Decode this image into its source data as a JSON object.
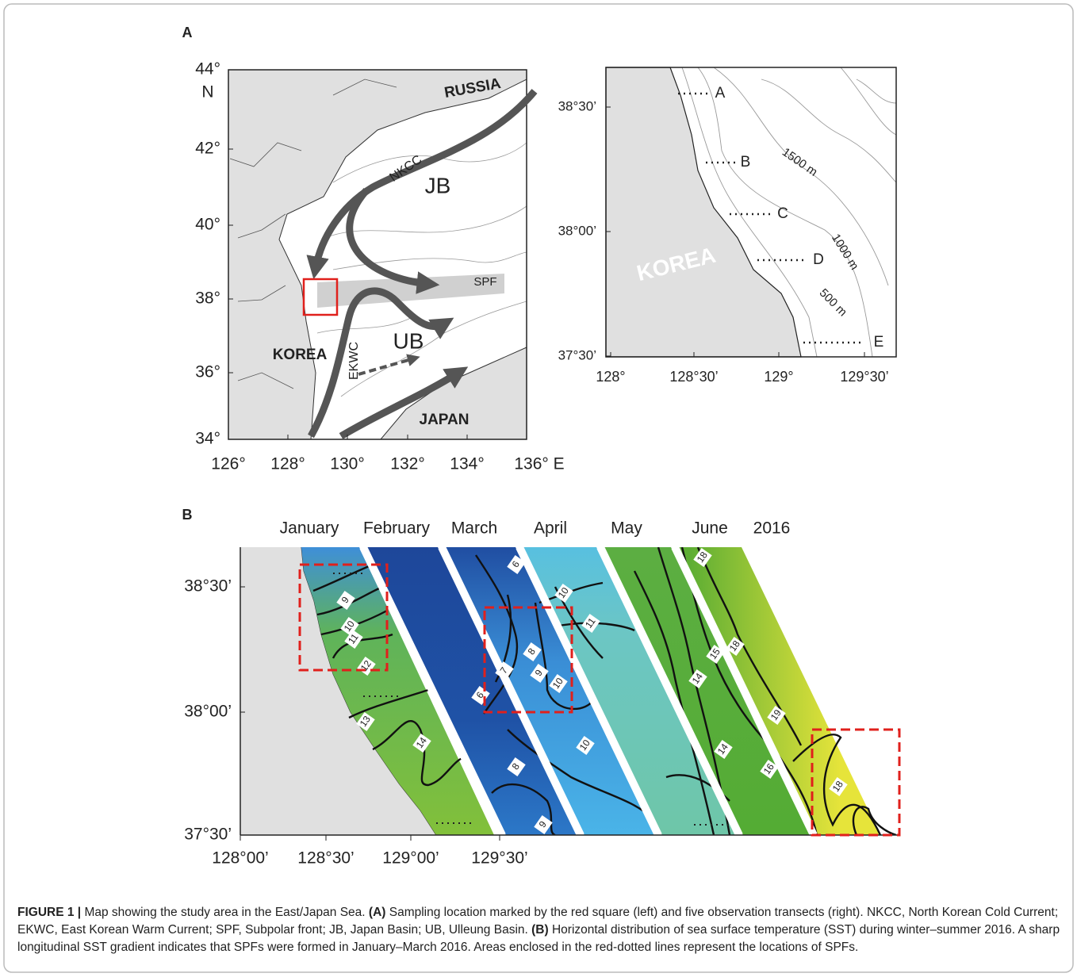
{
  "panel_a": {
    "label": "A",
    "left_map": {
      "lat_ticks": [
        "44°",
        "42°",
        "40°",
        "38°",
        "36°",
        "34°"
      ],
      "north": "N",
      "lon_ticks": [
        "126°",
        "128°",
        "130°",
        "132°",
        "134°",
        "136° E"
      ],
      "regions": [
        "RUSSIA",
        "KOREA",
        "JAPAN"
      ],
      "currents": [
        "NKCC",
        "EKWC"
      ],
      "front": "SPF",
      "basins": [
        "JB",
        "UB"
      ]
    },
    "right_map": {
      "lat_ticks": [
        "38°30’",
        "38°00’",
        "37°30’"
      ],
      "lon_ticks": [
        "128°",
        "128°30’",
        "129°",
        "129°30’"
      ],
      "transects": [
        "A",
        "B",
        "C",
        "D",
        "E"
      ],
      "isobaths": [
        "1500 m",
        "1000 m",
        "500 m"
      ],
      "region": "KOREA"
    }
  },
  "panel_b": {
    "label": "B",
    "months": [
      "January",
      "February",
      "March",
      "April",
      "May",
      "June"
    ],
    "year": "2016",
    "lat_ticks": [
      "38°30’",
      "38°00’",
      "37°30’"
    ],
    "lon_ticks": [
      "128°00’",
      "128°30’",
      "129°00’",
      "129°30’"
    ],
    "contour_labels": [
      9,
      10,
      11,
      12,
      13,
      14,
      6,
      10,
      11,
      7,
      8,
      9,
      10,
      6,
      10,
      8,
      9,
      14,
      15,
      18,
      18,
      19,
      14,
      16,
      18
    ]
  },
  "caption": {
    "segments": [
      "FIGURE 1 |",
      "Map showing the study area in the East/Japan Sea.",
      "(A)",
      "Sampling location marked by the red square (left) and five observation transects (right). NKCC, North Korean Cold Current; EKWC, East Korean Warm Current; SPF, Subpolar front; JB, Japan Basin; UB, Ulleung Basin.",
      "(B)",
      "Horizontal distribution of sea surface temperature (SST) during winter–summer 2016. A sharp longitudinal SST gradient indicates that SPFs were formed in January–March 2016. Areas enclosed in the red-dotted lines represent the locations of SPFs."
    ]
  }
}
